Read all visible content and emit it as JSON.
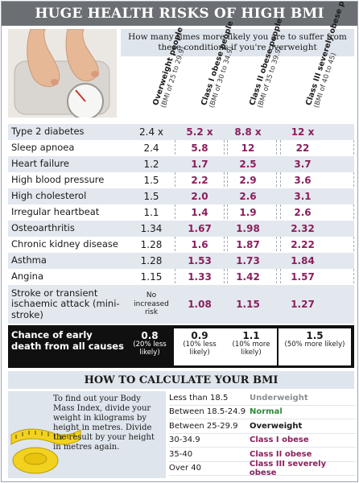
{
  "banner": {
    "title": "HUGE HEALTH RISKS OF HIGH BMI"
  },
  "intro": {
    "text": "How many times more likely you are to suffer from these conditions if you're overweight"
  },
  "columns": [
    {
      "title": "Overweight people",
      "range": "(BMI of 25 to 29.9)"
    },
    {
      "title": "Class I obese people",
      "range": "(BMI of 30 to 34.9)"
    },
    {
      "title": "Class II obese people",
      "range": "(BMI of 35 to 39.9)"
    },
    {
      "title": "Class III severely obese people",
      "range": "(BMI of 40 to 45)"
    }
  ],
  "rows": [
    {
      "label": "Type 2 diabetes",
      "values": [
        "2.4 x",
        "5.2 x",
        "8.8 x",
        "12 x"
      ]
    },
    {
      "label": "Sleep apnoea",
      "values": [
        "2.4",
        "5.8",
        "12",
        "22"
      ]
    },
    {
      "label": "Heart failure",
      "values": [
        "1.2",
        "1.7",
        "2.5",
        "3.7"
      ]
    },
    {
      "label": "High blood pressure",
      "values": [
        "1.5",
        "2.2",
        "2.9",
        "3.6"
      ]
    },
    {
      "label": "High cholesterol",
      "values": [
        "1.5",
        "2.0",
        "2.6",
        "3.1"
      ]
    },
    {
      "label": "Irregular heartbeat",
      "values": [
        "1.1",
        "1.4",
        "1.9",
        "2.6"
      ]
    },
    {
      "label": "Osteoarthritis",
      "values": [
        "1.34",
        "1.67",
        "1.98",
        "2.32"
      ]
    },
    {
      "label": "Chronic kidney disease",
      "values": [
        "1.28",
        "1.6",
        "1.87",
        "2.22"
      ]
    },
    {
      "label": "Asthma",
      "values": [
        "1.28",
        "1.53",
        "1.73",
        "1.84"
      ]
    },
    {
      "label": "Angina",
      "values": [
        "1.15",
        "1.33",
        "1.42",
        "1.57"
      ]
    },
    {
      "label": "Stroke or transient ischaemic attack (mini-stroke)",
      "values": [
        "No increased risk",
        "1.08",
        "1.15",
        "1.27"
      ]
    }
  ],
  "death": {
    "label": "Chance of early death from all causes",
    "cells": [
      {
        "value": "0.8",
        "note": "(20% less likely)"
      },
      {
        "value": "0.9",
        "note": "(10% less likely)"
      },
      {
        "value": "1.1",
        "note": "(10% more likely)"
      },
      {
        "value": "1.5",
        "note": "(50% more likely)"
      }
    ]
  },
  "calc": {
    "title": "HOW TO CALCULATE YOUR BMI",
    "instructions": "To find out your Body Mass Index, divide your weight in kilograms by height in metres. Divide the result by your height in metres again."
  },
  "bmi_table": [
    {
      "range": "Less than 18.5",
      "category": "Underweight",
      "color": "#8a8f94"
    },
    {
      "range": "Between 18.5-24.9",
      "category": "Normal",
      "color": "#2e8b3a"
    },
    {
      "range": "Between 25-29.9",
      "category": "Overweight",
      "color": "#1a1a1a"
    },
    {
      "range": "30-34.9",
      "category": "Class I obese",
      "color": "#8a1f5d"
    },
    {
      "range": "35-40",
      "category": "Class II obese",
      "color": "#8a1f5d"
    },
    {
      "range": "Over 40",
      "category": "Class III severely obese",
      "color": "#8a1f5d"
    }
  ],
  "icons": {
    "photo": "bathroom-scale-feet-icon",
    "tape": "measuring-tape-icon"
  }
}
